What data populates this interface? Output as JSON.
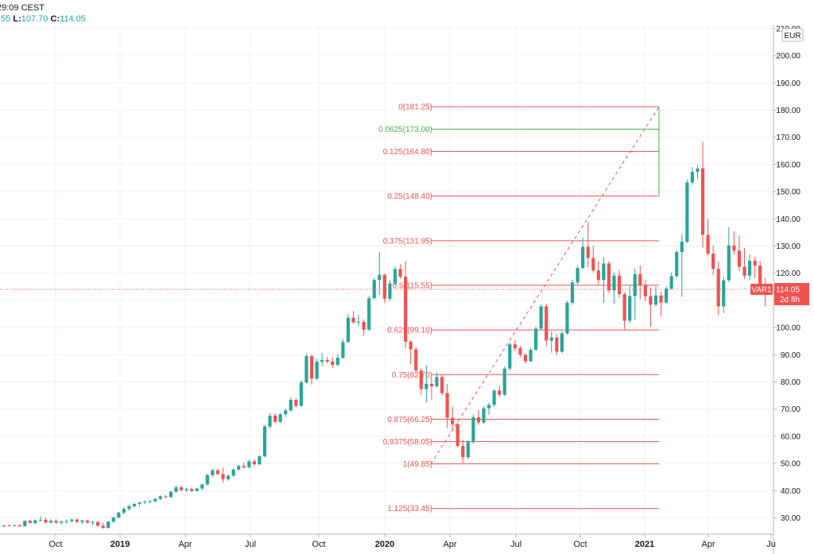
{
  "header": {
    "time": "29:09 CEST",
    "ohlc_prefix_value": ".55",
    "low_label": "L:",
    "low_value": "107.70",
    "close_label": "C:",
    "close_value": "114.05"
  },
  "colors": {
    "up": "#26a69a",
    "down": "#ef5350",
    "fib_line": "#ef5350",
    "fib_green": "#4caf50",
    "grid": "#eef0f3",
    "axis_text": "#131722",
    "price_label_bg": "#ef5350"
  },
  "chart_data": {
    "type": "candlestick",
    "currency": "EUR",
    "y_axis": {
      "ticks": [
        30,
        40,
        50,
        60,
        70,
        80,
        90,
        100,
        110,
        120,
        130,
        140,
        150,
        160,
        170,
        180,
        190,
        200,
        210
      ],
      "tick_labels": [
        "30.00",
        "40.00",
        "50.00",
        "60.00",
        "70.00",
        "80.00",
        "90.00",
        "100.00",
        "110.00",
        "120.00",
        "130.00",
        "140.00",
        "150.00",
        "160.00",
        "170.00",
        "180.00",
        "190.00",
        "200.00",
        "210.00"
      ],
      "range": [
        27,
        211
      ]
    },
    "x_axis": {
      "labels": [
        "Oct",
        "2019",
        "Apr",
        "Jul",
        "Oct",
        "2020",
        "Apr",
        "Jul",
        "Oct",
        "2021",
        "Apr",
        "Ju"
      ]
    },
    "last_price": {
      "value": 114.05,
      "label": "114.05",
      "symbol": "VAR1",
      "countdown": "2d 8h"
    },
    "fib_levels": [
      {
        "ratio": "0",
        "price": 181.25,
        "label": "0(181.25)",
        "color": "red"
      },
      {
        "ratio": "0.0625",
        "price": 173.0,
        "label": "0.0625(173.00)",
        "color": "green"
      },
      {
        "ratio": "0.125",
        "price": 164.8,
        "label": "0.125(164.80)",
        "color": "red"
      },
      {
        "ratio": "0.25",
        "price": 148.4,
        "label": "0.25(148.40)",
        "color": "red"
      },
      {
        "ratio": "0.375",
        "price": 131.95,
        "label": "0.375(131.95)",
        "color": "red"
      },
      {
        "ratio": "0.5",
        "price": 115.55,
        "label": "0.5(115.55)",
        "color": "red"
      },
      {
        "ratio": "0.625",
        "price": 99.1,
        "label": "0.625(99.10)",
        "color": "red"
      },
      {
        "ratio": "0.75",
        "price": 82.7,
        "label": "0.75(82.70)",
        "color": "red"
      },
      {
        "ratio": "0.875",
        "price": 66.25,
        "label": "0.875(66.25)",
        "color": "red"
      },
      {
        "ratio": "0.9375",
        "price": 58.05,
        "label": "0.9375(58.05)",
        "color": "red"
      },
      {
        "ratio": "1",
        "price": 49.85,
        "label": "1(49.85)",
        "color": "red"
      },
      {
        "ratio": "1.125",
        "price": 33.45,
        "label": "1.125(33.45)",
        "color": "red"
      }
    ],
    "fib_trend": {
      "from_price": 49.85,
      "to_price": 181.25
    },
    "candles": [
      [
        27.0,
        27.4,
        26.6,
        27.2
      ],
      [
        27.2,
        27.6,
        26.9,
        27.1
      ],
      [
        27.1,
        27.5,
        26.8,
        27.3
      ],
      [
        27.3,
        27.5,
        26.7,
        26.9
      ],
      [
        26.9,
        29.1,
        26.8,
        28.9
      ],
      [
        28.9,
        29.3,
        27.9,
        28.1
      ],
      [
        28.1,
        29.4,
        27.6,
        29.1
      ],
      [
        29.1,
        30.5,
        28.6,
        29.3
      ],
      [
        29.3,
        30.1,
        28.0,
        28.3
      ],
      [
        28.3,
        29.5,
        27.8,
        28.9
      ],
      [
        28.9,
        29.4,
        27.9,
        28.2
      ],
      [
        28.2,
        29.1,
        27.5,
        28.6
      ],
      [
        28.6,
        29.4,
        27.8,
        28.8
      ],
      [
        28.8,
        29.7,
        28.3,
        29.4
      ],
      [
        29.4,
        29.8,
        28.1,
        28.5
      ],
      [
        28.5,
        29.3,
        27.7,
        29.0
      ],
      [
        29.0,
        29.3,
        27.9,
        28.2
      ],
      [
        28.2,
        28.8,
        27.4,
        28.5
      ],
      [
        28.5,
        28.7,
        26.8,
        27.1
      ],
      [
        27.1,
        28.3,
        25.9,
        26.3
      ],
      [
        26.3,
        28.9,
        26.0,
        28.6
      ],
      [
        28.6,
        30.4,
        28.2,
        30.1
      ],
      [
        30.1,
        32.2,
        29.8,
        31.9
      ],
      [
        31.9,
        33.8,
        31.2,
        33.3
      ],
      [
        33.3,
        34.8,
        32.6,
        34.3
      ],
      [
        34.3,
        35.6,
        33.7,
        35.1
      ],
      [
        35.1,
        36.0,
        34.3,
        35.6
      ],
      [
        35.6,
        36.4,
        35.0,
        35.9
      ],
      [
        35.9,
        36.6,
        35.4,
        36.1
      ],
      [
        36.1,
        37.3,
        35.8,
        37.0
      ],
      [
        37.0,
        38.3,
        36.5,
        37.9
      ],
      [
        37.9,
        38.4,
        37.2,
        37.6
      ],
      [
        37.6,
        39.9,
        37.4,
        39.6
      ],
      [
        39.6,
        41.8,
        39.2,
        41.2
      ],
      [
        41.2,
        41.9,
        39.8,
        40.2
      ],
      [
        40.2,
        41.0,
        39.5,
        40.6
      ],
      [
        40.6,
        41.2,
        39.4,
        39.9
      ],
      [
        39.9,
        41.1,
        39.6,
        40.8
      ],
      [
        40.8,
        42.6,
        40.2,
        42.3
      ],
      [
        42.3,
        46.2,
        41.9,
        45.7
      ],
      [
        45.7,
        48.1,
        45.2,
        47.5
      ],
      [
        47.5,
        48.0,
        45.7,
        46.1
      ],
      [
        46.1,
        48.4,
        43.0,
        44.2
      ],
      [
        44.2,
        46.0,
        43.6,
        45.5
      ],
      [
        45.5,
        48.1,
        45.2,
        47.8
      ],
      [
        47.8,
        49.6,
        47.3,
        49.1
      ],
      [
        49.1,
        50.3,
        48.1,
        48.6
      ],
      [
        48.6,
        51.3,
        48.3,
        50.8
      ],
      [
        50.8,
        51.6,
        49.2,
        49.7
      ],
      [
        49.7,
        53.1,
        49.4,
        52.6
      ],
      [
        52.6,
        64.2,
        52.3,
        63.6
      ],
      [
        63.6,
        68.6,
        62.9,
        67.6
      ],
      [
        67.6,
        68.4,
        64.8,
        65.3
      ],
      [
        65.3,
        68.5,
        64.9,
        68.1
      ],
      [
        68.1,
        70.2,
        67.2,
        69.5
      ],
      [
        69.5,
        74.3,
        69.1,
        73.4
      ],
      [
        73.4,
        74.0,
        70.6,
        71.2
      ],
      [
        71.2,
        80.6,
        70.9,
        79.8
      ],
      [
        79.8,
        90.3,
        79.4,
        89.5
      ],
      [
        89.5,
        90.1,
        79.0,
        81.2
      ],
      [
        81.2,
        88.6,
        80.7,
        87.4
      ],
      [
        87.4,
        90.5,
        85.8,
        88.1
      ],
      [
        88.1,
        89.2,
        86.8,
        87.5
      ],
      [
        87.5,
        89.1,
        85.1,
        86.3
      ],
      [
        86.3,
        90.0,
        85.9,
        88.9
      ],
      [
        88.9,
        95.8,
        88.4,
        94.7
      ],
      [
        94.7,
        104.9,
        94.1,
        103.6
      ],
      [
        103.6,
        106.1,
        101.3,
        101.9
      ],
      [
        101.9,
        104.8,
        100.6,
        102.1
      ],
      [
        102.1,
        103.0,
        96.9,
        99.2
      ],
      [
        99.2,
        111.6,
        98.8,
        110.8
      ],
      [
        110.8,
        118.2,
        110.3,
        117.5
      ],
      [
        117.5,
        127.8,
        112.1,
        119.4
      ],
      [
        119.4,
        119.9,
        109.0,
        110.6
      ],
      [
        110.6,
        117.4,
        109.9,
        116.2
      ],
      [
        116.2,
        122.5,
        115.5,
        121.5
      ],
      [
        121.5,
        123.3,
        117.9,
        118.7
      ],
      [
        118.7,
        124.4,
        92.3,
        94.8
      ],
      [
        94.8,
        95.4,
        86.6,
        92.0
      ],
      [
        92.0,
        92.8,
        83.3,
        84.2
      ],
      [
        84.2,
        85.0,
        75.1,
        77.4
      ],
      [
        77.4,
        86.2,
        72.4,
        79.3
      ],
      [
        79.3,
        81.3,
        73.5,
        78.4
      ],
      [
        78.4,
        83.5,
        78.0,
        81.8
      ],
      [
        81.8,
        82.6,
        75.0,
        75.9
      ],
      [
        75.9,
        79.2,
        63.1,
        66.8
      ],
      [
        66.8,
        70.9,
        62.2,
        64.4
      ],
      [
        64.4,
        65.3,
        55.8,
        56.5
      ],
      [
        56.5,
        58.8,
        50.2,
        52.3
      ],
      [
        52.3,
        58.6,
        51.6,
        57.9
      ],
      [
        57.9,
        67.9,
        57.3,
        67.0
      ],
      [
        67.0,
        69.6,
        64.2,
        65.1
      ],
      [
        65.1,
        70.9,
        64.6,
        70.3
      ],
      [
        70.3,
        72.4,
        67.9,
        71.6
      ],
      [
        71.6,
        77.2,
        70.8,
        76.8
      ],
      [
        76.8,
        78.6,
        74.5,
        75.3
      ],
      [
        75.3,
        85.8,
        74.8,
        84.9
      ],
      [
        84.9,
        94.5,
        84.2,
        93.8
      ],
      [
        93.8,
        95.5,
        91.3,
        92.4
      ],
      [
        92.4,
        93.3,
        89.1,
        90.0
      ],
      [
        90.0,
        90.5,
        86.7,
        87.6
      ],
      [
        87.6,
        92.6,
        87.3,
        91.8
      ],
      [
        91.8,
        100.4,
        91.4,
        99.6
      ],
      [
        99.6,
        108.6,
        99.2,
        107.8
      ],
      [
        107.8,
        108.8,
        93.1,
        95.2
      ],
      [
        95.2,
        98.6,
        90.8,
        96.3
      ],
      [
        96.3,
        97.5,
        89.9,
        91.1
      ],
      [
        91.1,
        98.7,
        90.6,
        97.9
      ],
      [
        97.9,
        109.8,
        97.3,
        109.1
      ],
      [
        109.1,
        117.6,
        108.4,
        116.6
      ],
      [
        116.6,
        122.8,
        115.8,
        121.9
      ],
      [
        121.9,
        133.1,
        121.5,
        129.7
      ],
      [
        129.7,
        138.8,
        122.1,
        125.6
      ],
      [
        125.6,
        130.1,
        120.3,
        121.0
      ],
      [
        121.0,
        124.4,
        115.9,
        117.5
      ],
      [
        117.5,
        125.9,
        109.0,
        123.6
      ],
      [
        123.6,
        124.3,
        112.7,
        113.7
      ],
      [
        113.7,
        120.3,
        108.8,
        119.1
      ],
      [
        119.1,
        121.2,
        110.9,
        112.3
      ],
      [
        112.3,
        112.9,
        99.3,
        102.5
      ],
      [
        102.5,
        115.5,
        101.8,
        111.6
      ],
      [
        111.6,
        121.8,
        102.9,
        119.7
      ],
      [
        119.7,
        122.8,
        110.4,
        115.7
      ],
      [
        115.7,
        117.6,
        109.8,
        111.5
      ],
      [
        111.5,
        114.6,
        100.3,
        108.4
      ],
      [
        108.4,
        115.1,
        107.9,
        111.8
      ],
      [
        111.8,
        113.2,
        104.1,
        109.2
      ],
      [
        109.2,
        115.0,
        108.7,
        114.3
      ],
      [
        114.3,
        120.2,
        113.9,
        118.9
      ],
      [
        118.9,
        128.5,
        118.5,
        127.8
      ],
      [
        127.8,
        134.3,
        111.3,
        131.6
      ],
      [
        131.6,
        154.5,
        131.1,
        153.4
      ],
      [
        153.4,
        159.1,
        152.5,
        157.3
      ],
      [
        157.3,
        159.8,
        154.7,
        158.5
      ],
      [
        158.5,
        168.3,
        129.4,
        134.1
      ],
      [
        134.1,
        139.9,
        126.3,
        127.2
      ],
      [
        127.2,
        130.3,
        119.2,
        121.6
      ],
      [
        121.6,
        124.2,
        104.6,
        107.8
      ],
      [
        107.8,
        118.7,
        105.3,
        117.4
      ],
      [
        117.4,
        136.8,
        116.8,
        130.2
      ],
      [
        130.2,
        135.4,
        126.8,
        128.3
      ],
      [
        128.3,
        133.9,
        120.9,
        122.4
      ],
      [
        122.4,
        129.2,
        117.9,
        119.1
      ],
      [
        119.1,
        126.9,
        117.4,
        124.6
      ],
      [
        124.6,
        126.1,
        118.2,
        122.8
      ],
      [
        122.8,
        124.5,
        112.3,
        116.1
      ],
      [
        116.1,
        118.4,
        107.7,
        114.05
      ]
    ]
  }
}
